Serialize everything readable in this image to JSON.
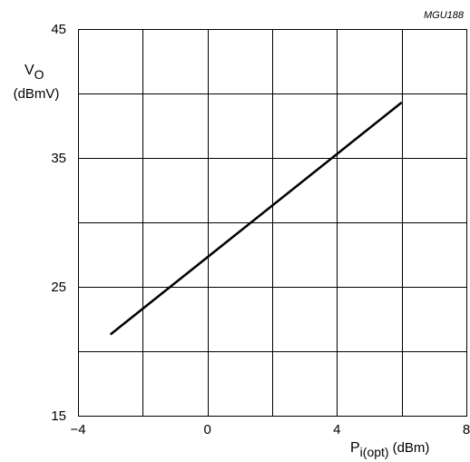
{
  "chart_data": {
    "type": "line",
    "code_label": "MGU188",
    "ylabel": {
      "main": "V",
      "sub": "O",
      "unit": "(dBmV)"
    },
    "xlabel": {
      "main": "P",
      "sub": "i(opt)",
      "unit": "(dBm)"
    },
    "xlim": [
      -4,
      8
    ],
    "ylim": [
      15,
      45
    ],
    "x_ticks": [
      {
        "value": -4,
        "label": "−4"
      },
      {
        "value": 0,
        "label": "0"
      },
      {
        "value": 4,
        "label": "4"
      },
      {
        "value": 8,
        "label": "8"
      }
    ],
    "y_ticks": [
      {
        "value": 15,
        "label": "15"
      },
      {
        "value": 25,
        "label": "25"
      },
      {
        "value": 35,
        "label": "35"
      },
      {
        "value": 45,
        "label": "45"
      }
    ],
    "x_grid": [
      -4,
      -2,
      0,
      2,
      4,
      6,
      8
    ],
    "y_grid": [
      15,
      20,
      25,
      30,
      35,
      40,
      45
    ],
    "grid": true,
    "series": [
      {
        "color": "#000000",
        "x": [
          -3,
          6
        ],
        "y": [
          21.3,
          39.3
        ]
      }
    ]
  }
}
